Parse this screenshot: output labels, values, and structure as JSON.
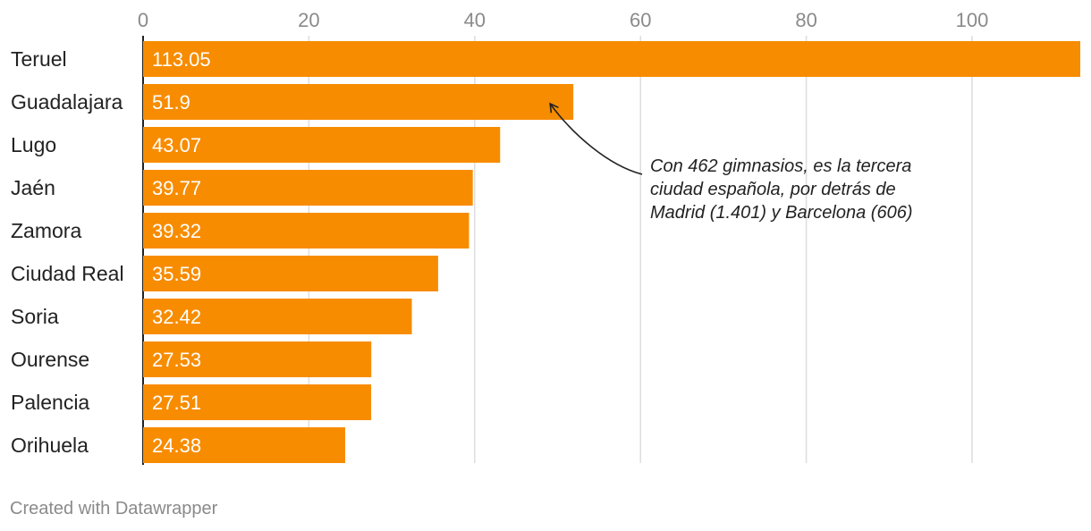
{
  "chart_data": {
    "type": "bar",
    "orientation": "horizontal",
    "categories": [
      "Teruel",
      "Guadalajara",
      "Lugo",
      "Jaén",
      "Zamora",
      "Ciudad Real",
      "Soria",
      "Ourense",
      "Palencia",
      "Orihuela"
    ],
    "values": [
      113.05,
      51.9,
      43.07,
      39.77,
      39.32,
      35.59,
      32.42,
      27.53,
      27.51,
      24.38
    ],
    "value_labels": [
      "113.05",
      "51.9",
      "43.07",
      "39.77",
      "39.32",
      "35.59",
      "32.42",
      "27.53",
      "27.51",
      "24.38"
    ],
    "xlim": [
      0,
      113.05
    ],
    "xticks": [
      0,
      20,
      40,
      60,
      80,
      100
    ],
    "xtick_labels": [
      "0",
      "20",
      "40",
      "60",
      "80",
      "100"
    ],
    "axis_position": "top",
    "grid": true,
    "bar_color": "#f78c00",
    "annotation": {
      "target_category": "Guadalajara",
      "lines": [
        "Con 462 gimnasios, es la tercera",
        "ciudad española, por detrás de",
        "Madrid (1.401) y Barcelona (606)"
      ]
    }
  },
  "footer": {
    "credit": "Created with Datawrapper"
  }
}
